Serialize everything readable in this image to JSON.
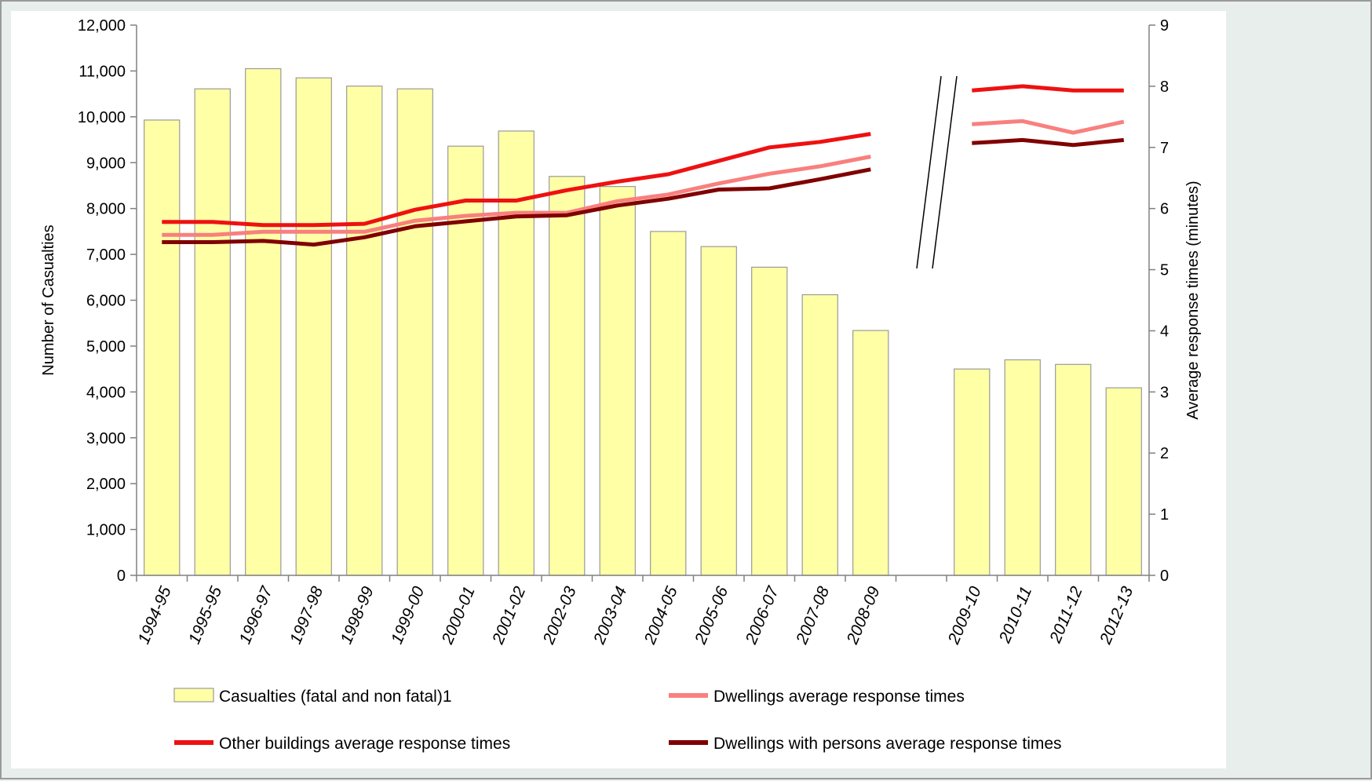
{
  "chart_data": {
    "type": "bar",
    "categories": [
      "1994-95",
      "1995-95",
      "1996-97",
      "1997-98",
      "1998-99",
      "1999-00",
      "2000-01",
      "2001-02",
      "2002-03",
      "2003-04",
      "2004-05",
      "2005-06",
      "2006-07",
      "2007-08",
      "2008-09",
      "",
      "2009-10",
      "2010-11",
      "2011-12",
      "2012-13"
    ],
    "ylabel": "Number of Casualties",
    "y2label": "Average response times (minutes)",
    "ylim": [
      0,
      12000
    ],
    "y2lim": [
      0,
      9
    ],
    "yticks": [
      "0",
      "1,000",
      "2,000",
      "3,000",
      "4,000",
      "5,000",
      "6,000",
      "7,000",
      "8,000",
      "9,000",
      "10,000",
      "11,000",
      "12,000"
    ],
    "y2ticks": [
      "0",
      "1",
      "2",
      "3",
      "4",
      "5",
      "6",
      "7",
      "8",
      "9"
    ],
    "axis_break": "between 2008-09 and 2009-10",
    "bar_series": {
      "name": "Casualties (fatal and non fatal)1",
      "color": "#ffffa6",
      "values": [
        9930,
        10610,
        11050,
        10850,
        10670,
        10610,
        9360,
        9690,
        8700,
        8480,
        7500,
        7170,
        6720,
        6120,
        5340,
        null,
        4500,
        4700,
        4600,
        4090
      ]
    },
    "line_series": [
      {
        "name": "Dwellings average response times",
        "color": "#f8807e",
        "values": [
          5.57,
          5.57,
          5.62,
          5.62,
          5.62,
          5.8,
          5.88,
          5.93,
          5.93,
          6.12,
          6.23,
          6.41,
          6.57,
          6.69,
          6.85,
          null,
          7.38,
          7.43,
          7.24,
          7.42
        ]
      },
      {
        "name": "Other buildings average response times",
        "color": "#ee1111",
        "values": [
          5.78,
          5.78,
          5.73,
          5.73,
          5.75,
          5.98,
          6.13,
          6.13,
          6.3,
          6.44,
          6.56,
          6.78,
          7.0,
          7.09,
          7.22,
          null,
          7.93,
          8.0,
          7.93,
          7.93
        ]
      },
      {
        "name": "Dwellings with persons average response times",
        "color": "#800000",
        "values": [
          5.45,
          5.45,
          5.47,
          5.41,
          5.53,
          5.71,
          5.79,
          5.87,
          5.89,
          6.05,
          6.16,
          6.31,
          6.33,
          6.48,
          6.64,
          null,
          7.07,
          7.12,
          7.04,
          7.12
        ]
      }
    ],
    "legend_order": [
      "Casualties (fatal and non fatal)1",
      "Dwellings average response times",
      "Other buildings average response times",
      "Dwellings with persons average response times"
    ],
    "legend_position": "bottom",
    "grid": false
  }
}
